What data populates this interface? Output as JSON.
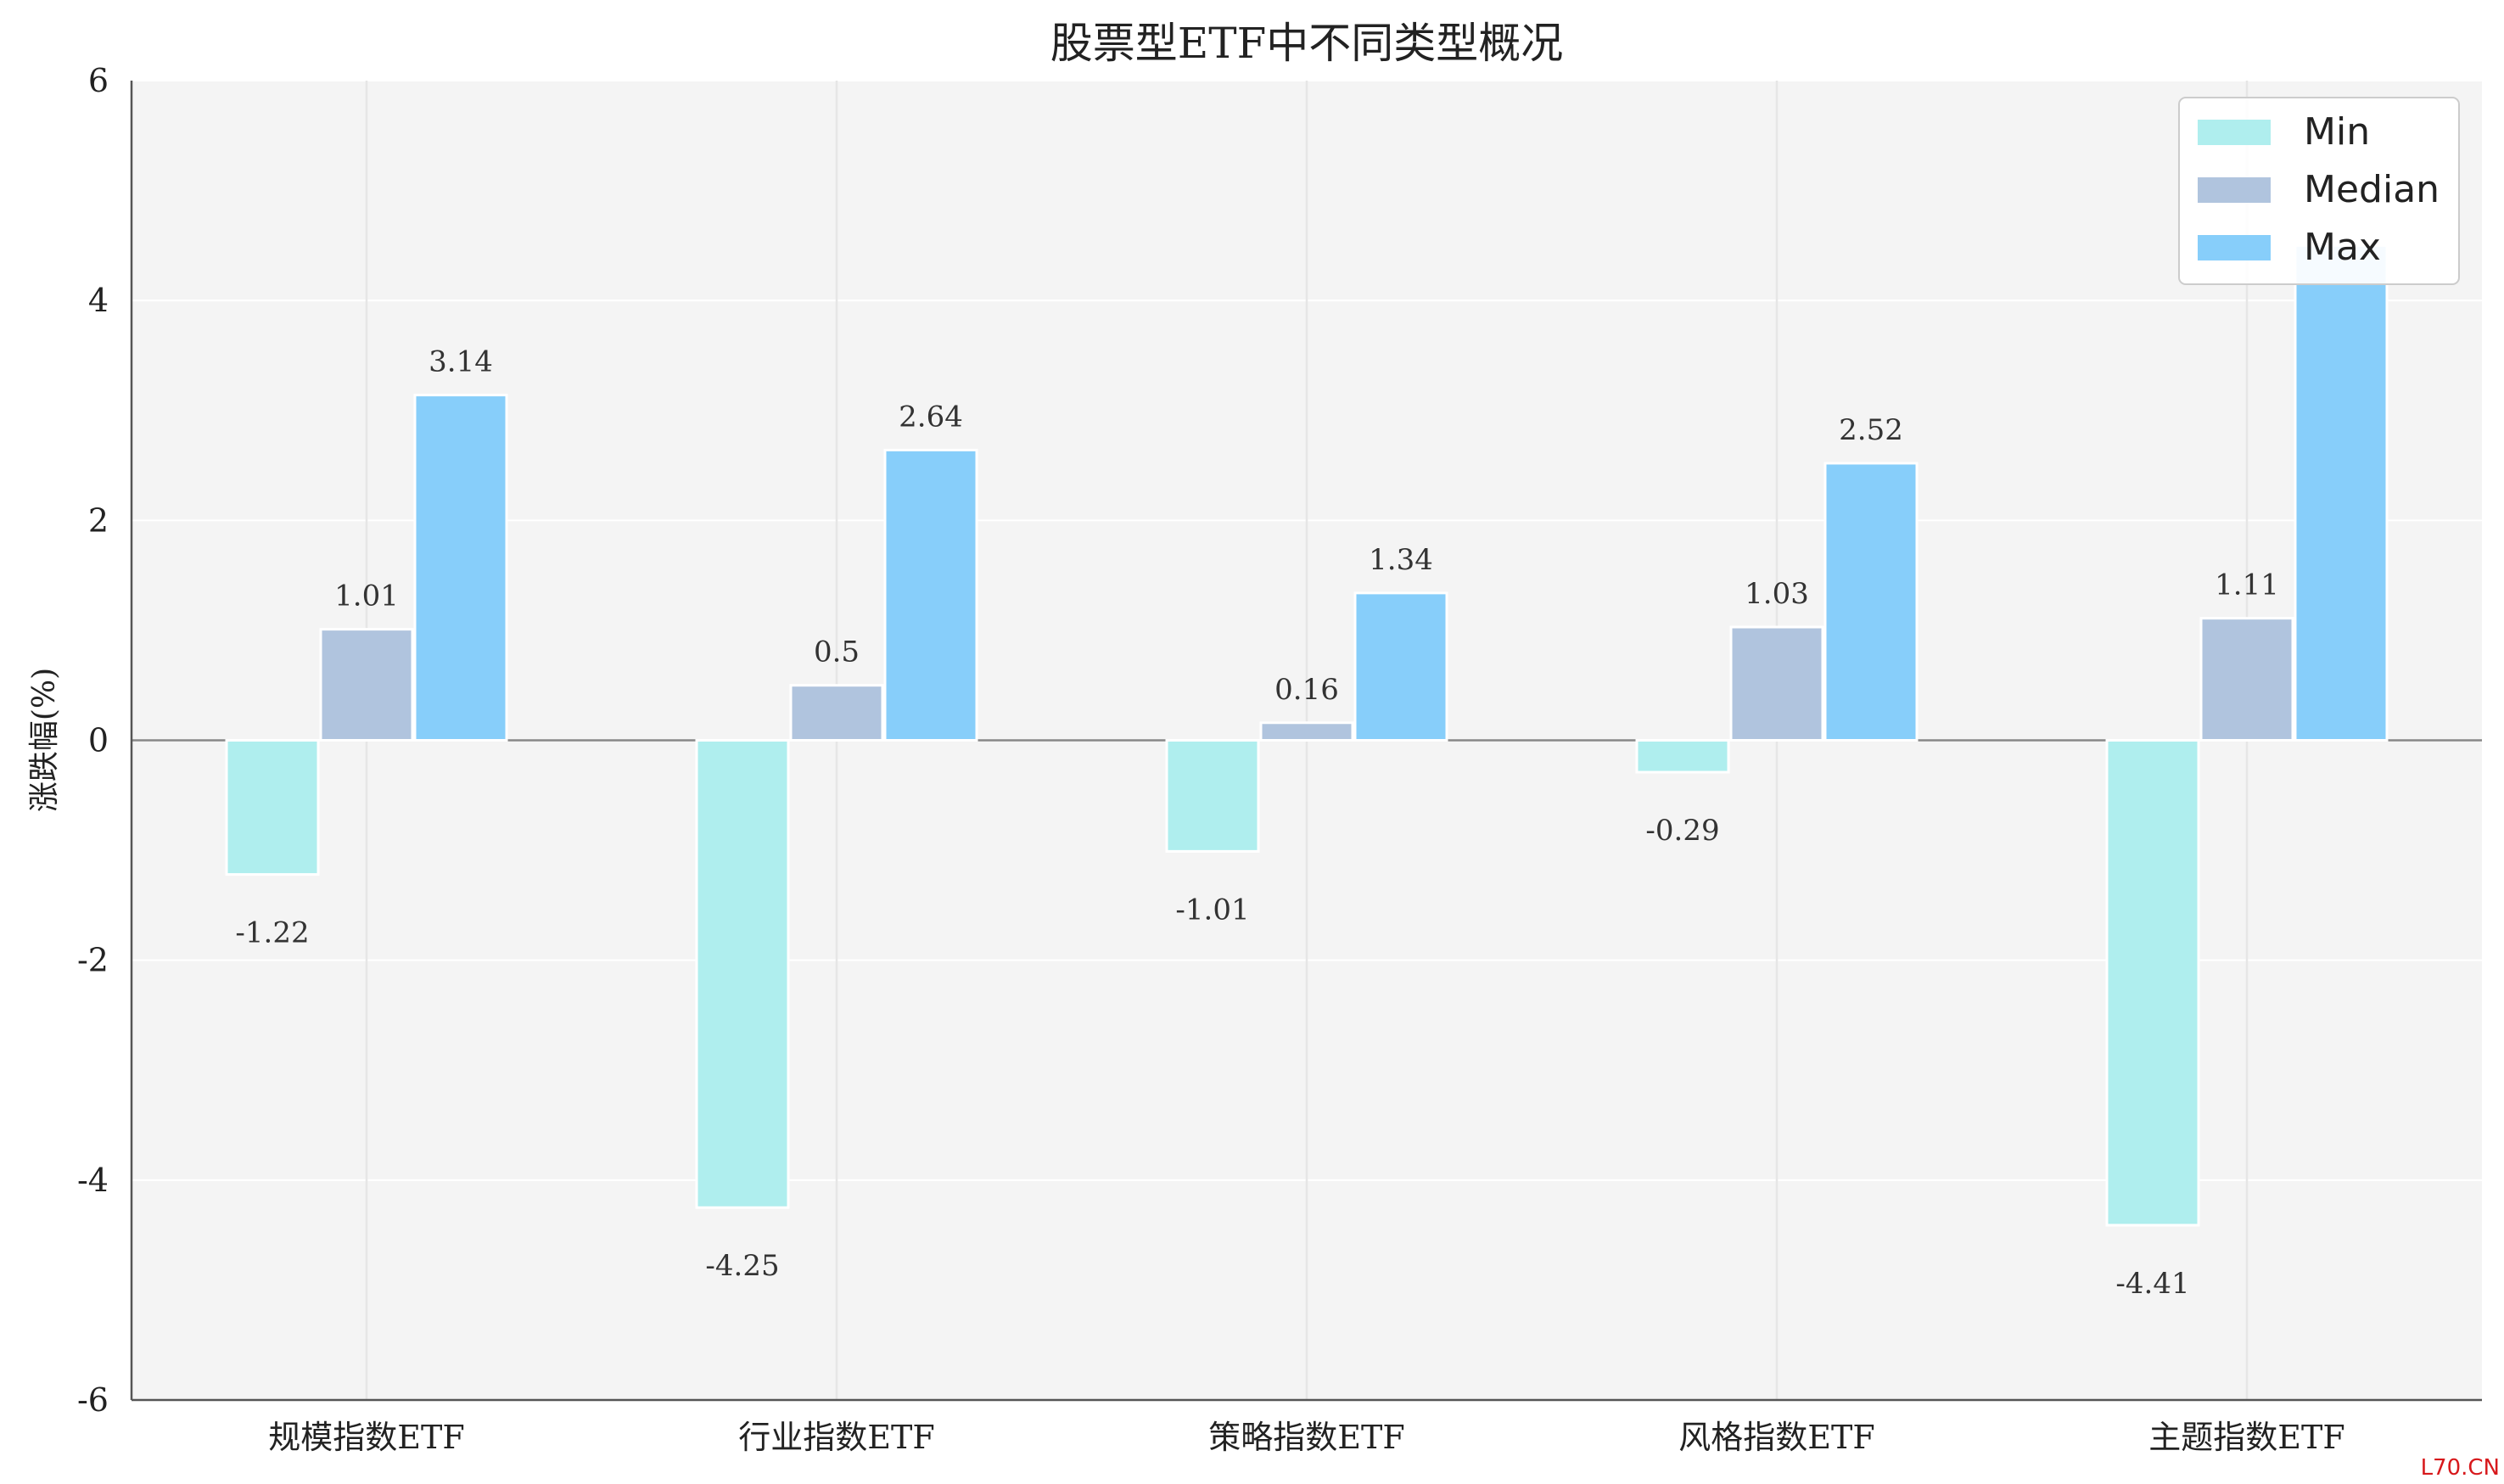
{
  "chart_data": {
    "type": "bar",
    "title": "股票型ETF中不同类型概况",
    "ylabel": "涨跌幅(%)",
    "categories": [
      "规模指数ETF",
      "行业指数ETF",
      "策略指数ETF",
      "风格指数ETF",
      "主题指数ETF"
    ],
    "series": [
      {
        "name": "Min",
        "values": [
          -1.22,
          -4.25,
          -1.01,
          -0.29,
          -4.41
        ],
        "labels": [
          "-1.22",
          "-4.25",
          "-1.01",
          "-0.29",
          "-4.41"
        ],
        "color": "#afeeee"
      },
      {
        "name": "Median",
        "values": [
          1.01,
          0.5,
          0.16,
          1.03,
          1.11
        ],
        "labels": [
          "1.01",
          "0.5",
          "0.16",
          "1.03",
          "1.11"
        ],
        "color": "#b0c4de"
      },
      {
        "name": "Max",
        "values": [
          3.14,
          2.64,
          1.34,
          2.52,
          4.5
        ],
        "labels": [
          "3.14",
          "2.64",
          "1.34",
          "2.52",
          ""
        ],
        "color": "#87cefa"
      }
    ],
    "ylim": [
      -6,
      6
    ],
    "yticks": [
      "-6",
      "-4",
      "-2",
      "0",
      "2",
      "4",
      "6"
    ],
    "grid": true,
    "legend": "top-right",
    "zero_line": true
  },
  "watermark": "L70.CN",
  "colors": {
    "plot_background": "#f4f4f4",
    "grid": "#ffffff",
    "zero_line": "#888888"
  }
}
